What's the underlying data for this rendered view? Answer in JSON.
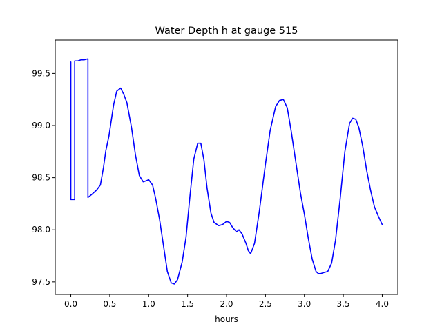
{
  "chart_data": {
    "type": "line",
    "title": "Water Depth h at gauge 515",
    "xlabel": "hours",
    "ylabel": "",
    "xlim": [
      -0.2,
      4.2
    ],
    "ylim": [
      97.38,
      99.82
    ],
    "xticks": [
      0.0,
      0.5,
      1.0,
      1.5,
      2.0,
      2.5,
      3.0,
      3.5,
      4.0
    ],
    "xtick_labels": [
      "0.0",
      "0.5",
      "1.0",
      "1.5",
      "2.0",
      "2.5",
      "3.0",
      "3.5",
      "4.0"
    ],
    "yticks": [
      97.5,
      98.0,
      98.5,
      99.0,
      99.5
    ],
    "ytick_labels": [
      "97.5",
      "98.0",
      "98.5",
      "99.0",
      "99.5"
    ],
    "grid": false,
    "series": [
      {
        "color": "#0000ff",
        "x": [
          0.0,
          0.0,
          0.05,
          0.05,
          0.09,
          0.13,
          0.17,
          0.22,
          0.22,
          0.27,
          0.33,
          0.38,
          0.42,
          0.45,
          0.49,
          0.55,
          0.59,
          0.64,
          0.68,
          0.72,
          0.78,
          0.83,
          0.88,
          0.93,
          0.97,
          1.0,
          1.05,
          1.09,
          1.14,
          1.19,
          1.24,
          1.29,
          1.33,
          1.37,
          1.43,
          1.48,
          1.53,
          1.58,
          1.63,
          1.67,
          1.71,
          1.75,
          1.8,
          1.84,
          1.9,
          1.95,
          2.0,
          2.04,
          2.08,
          2.13,
          2.16,
          2.2,
          2.25,
          2.28,
          2.31,
          2.36,
          2.42,
          2.5,
          2.56,
          2.63,
          2.68,
          2.73,
          2.78,
          2.83,
          2.89,
          2.95,
          3.0,
          3.05,
          3.1,
          3.15,
          3.18,
          3.21,
          3.25,
          3.3,
          3.35,
          3.4,
          3.46,
          3.52,
          3.58,
          3.62,
          3.66,
          3.7,
          3.75,
          3.8,
          3.85,
          3.9,
          3.95,
          4.0
        ],
        "y": [
          99.61,
          98.29,
          98.29,
          99.62,
          99.62,
          99.63,
          99.63,
          99.64,
          98.31,
          98.34,
          98.38,
          98.43,
          98.6,
          98.76,
          98.9,
          99.2,
          99.33,
          99.36,
          99.3,
          99.22,
          98.98,
          98.72,
          98.52,
          98.46,
          98.47,
          98.48,
          98.43,
          98.3,
          98.1,
          97.85,
          97.6,
          97.49,
          97.48,
          97.52,
          97.69,
          97.93,
          98.32,
          98.68,
          98.83,
          98.83,
          98.67,
          98.4,
          98.16,
          98.07,
          98.04,
          98.05,
          98.08,
          98.07,
          98.02,
          97.98,
          98.0,
          97.96,
          97.87,
          97.8,
          97.77,
          97.87,
          98.17,
          98.63,
          98.95,
          99.18,
          99.24,
          99.25,
          99.17,
          98.95,
          98.65,
          98.35,
          98.15,
          97.92,
          97.72,
          97.6,
          97.58,
          97.58,
          97.59,
          97.6,
          97.68,
          97.9,
          98.3,
          98.75,
          99.02,
          99.07,
          99.06,
          98.98,
          98.8,
          98.57,
          98.38,
          98.22,
          98.13,
          98.05
        ]
      }
    ]
  }
}
